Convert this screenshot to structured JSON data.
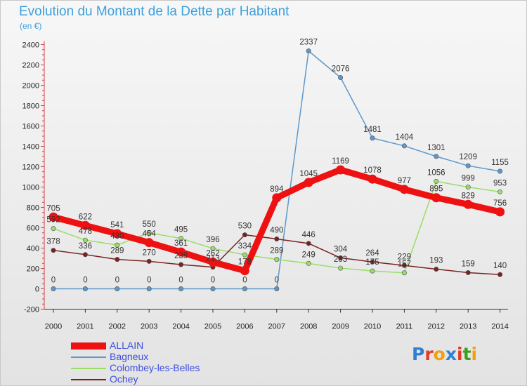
{
  "header": {
    "title": "Evolution du Montant de la Dette par Habitant",
    "unit": "(en €)"
  },
  "logo": {
    "text": "Proxiti",
    "letter_colors": [
      "#2f7fd8",
      "#e23b2a",
      "#f0a010",
      "#2f7fd8",
      "#e23b2a",
      "#3aa020",
      "#f0a010"
    ]
  },
  "chart_data": {
    "type": "line",
    "title": "Evolution du Montant de la Dette par Habitant",
    "ylabel": "(en €)",
    "xlabel": "",
    "x": [
      "2000",
      "2001",
      "2002",
      "2003",
      "2004",
      "2005",
      "2006",
      "2007",
      "2008",
      "2009",
      "2010",
      "2011",
      "2012",
      "2013",
      "2014"
    ],
    "ylim": [
      -200,
      2400
    ],
    "yticks": [
      "2400",
      "2200",
      "2000",
      "1800",
      "1600",
      "1400",
      "1200",
      "1000",
      "800",
      "600",
      "400",
      "200",
      "0",
      "-200"
    ],
    "grid": false,
    "legend_position": "bottom-left",
    "series": [
      {
        "name": "ALLAIN",
        "color": "#ee1111",
        "values": [
          705,
          622,
          541,
          454,
          361,
          262,
          178,
          894,
          1045,
          1169,
          1078,
          977,
          895,
          829,
          756
        ],
        "labels": [
          "705",
          "622",
          "541",
          "454",
          "361",
          "262",
          "178",
          "894",
          "1045",
          "1169",
          "1078",
          "977",
          "895",
          "829",
          "756"
        ]
      },
      {
        "name": "Bagneux",
        "color": "#5d98cc",
        "values": [
          0,
          0,
          0,
          0,
          0,
          0,
          0,
          0,
          2337,
          2076,
          1481,
          1404,
          1301,
          1209,
          1155
        ],
        "labels": [
          "0",
          "0",
          "0",
          "0",
          "0",
          "0",
          "0",
          "0",
          "2337",
          "2076",
          "1481",
          "1404",
          "1301",
          "1209",
          "1155"
        ]
      },
      {
        "name": "Colombey-les-Belles",
        "color": "#99dd66",
        "values": [
          592,
          478,
          430,
          550,
          495,
          396,
          334,
          289,
          249,
          203,
          175,
          157,
          1056,
          999,
          953
        ],
        "labels": [
          "592",
          "478",
          "430",
          "550",
          "495",
          "396",
          "334",
          "289",
          "249",
          "203",
          "175",
          "157",
          "1056",
          "999",
          "953"
        ]
      },
      {
        "name": "Ochey",
        "color": "#7a2222",
        "values": [
          378,
          336,
          289,
          270,
          238,
          213,
          530,
          490,
          446,
          304,
          264,
          229,
          193,
          159,
          140
        ],
        "labels": [
          "378",
          "336",
          "289",
          "270",
          "238",
          "213",
          "530",
          "490",
          "446",
          "304",
          "264",
          "229",
          "193",
          "159",
          "140"
        ]
      }
    ]
  }
}
